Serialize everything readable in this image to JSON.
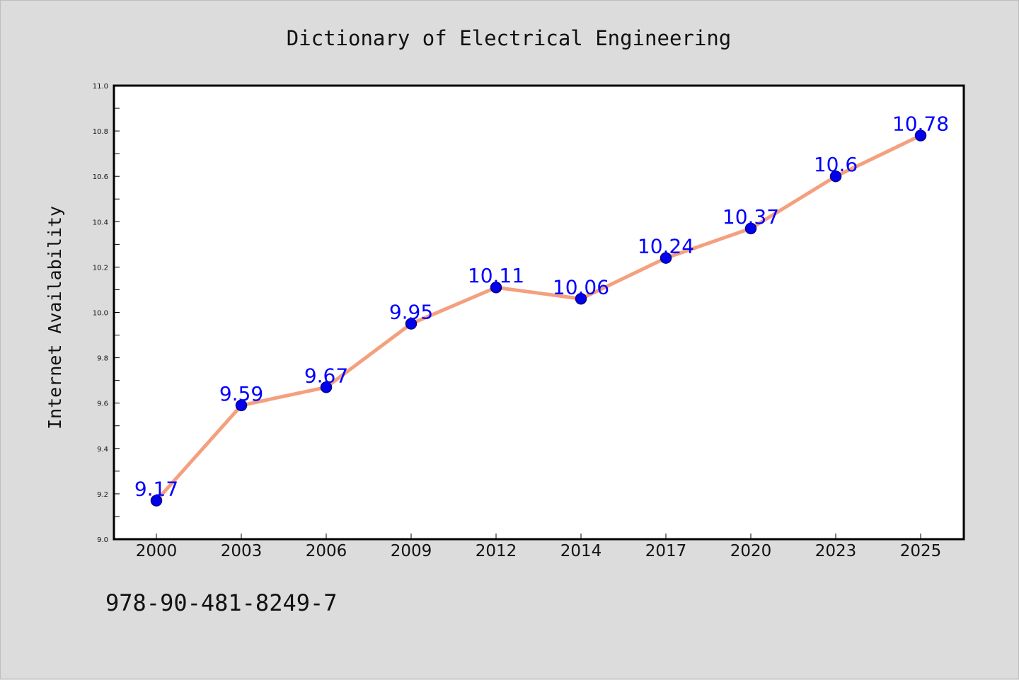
{
  "chart_data": {
    "type": "line",
    "title": "Dictionary of Electrical Engineering",
    "xlabel": "",
    "ylabel": "Internet Availability",
    "categories": [
      "2000",
      "2003",
      "2006",
      "2009",
      "2012",
      "2014",
      "2017",
      "2020",
      "2023",
      "2025"
    ],
    "series": [
      {
        "values": [
          9.17,
          9.59,
          9.67,
          9.95,
          10.11,
          10.06,
          10.24,
          10.37,
          10.6,
          10.78
        ]
      }
    ],
    "data_labels": [
      "9.17",
      "9.59",
      "9.67",
      "9.95",
      "10.11",
      "10.06",
      "10.24",
      "10.37",
      "10.6",
      "10.78"
    ],
    "ylim": [
      9.0,
      11.0
    ],
    "yticks": [
      "9.0",
      "9.2",
      "9.4",
      "9.6",
      "9.8",
      "10.0",
      "10.2",
      "10.4",
      "10.6",
      "10.8",
      "11.0"
    ],
    "grid": false,
    "colors": {
      "line": "#f4a07f",
      "marker": "#0000ee",
      "marker_edge": "#00008b",
      "label": "#0000ff",
      "background": "#dcdcdc",
      "plot_bg": "#ffffff"
    }
  },
  "footer": {
    "code": "978-90-481-8249-7"
  }
}
